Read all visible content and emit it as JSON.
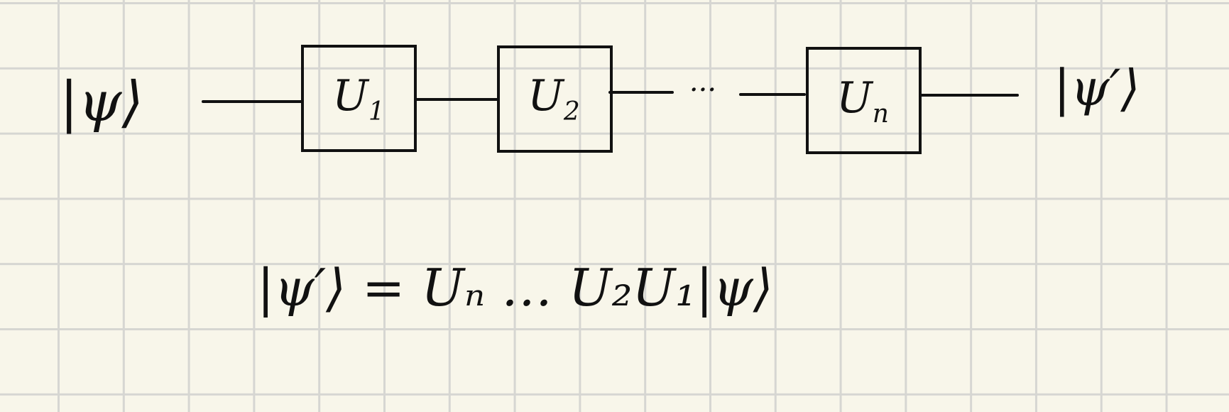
{
  "diagram": {
    "input_state": "|ψ⟩",
    "output_state": "|ψ′⟩",
    "gates": [
      {
        "base": "U",
        "sub": "1"
      },
      {
        "base": "U",
        "sub": "2"
      },
      {
        "base": "U",
        "sub": "n"
      }
    ],
    "ellipsis": "···",
    "equation": "|ψ′⟩ = Uₙ … U₂U₁|ψ⟩"
  },
  "colors": {
    "paper": "#f8f6ea",
    "grid": "#d6d6d2",
    "ink": "#111111"
  }
}
